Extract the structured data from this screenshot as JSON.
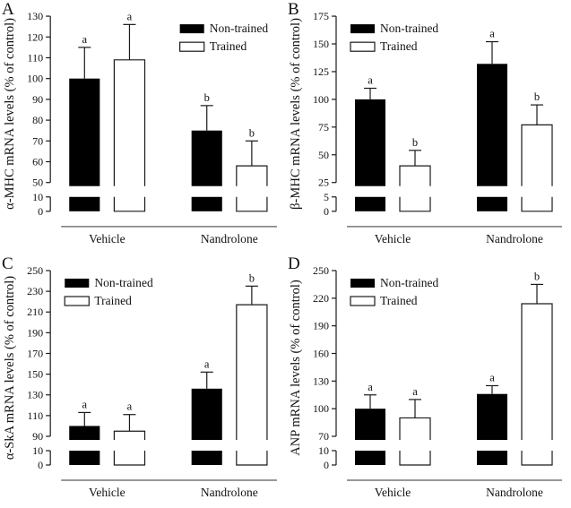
{
  "colors": {
    "bar_non_trained": "#000000",
    "bar_trained": "#ffffff",
    "axis": "#1a1a1a",
    "baseline": "#8a8a8a",
    "text": "#111111"
  },
  "chart_data": [
    {
      "type": "bar",
      "panel": "A",
      "ylabel": "α-MHC mRNA levels (% of control)",
      "categories": [
        "Vehicle",
        "Nandrolone"
      ],
      "legend": {
        "position": "top-right"
      },
      "series": [
        {
          "name": "Non-trained",
          "fill": "black",
          "values": [
            100,
            75
          ],
          "errors": [
            15,
            12
          ],
          "letters": [
            "a",
            "b"
          ]
        },
        {
          "name": "Trained",
          "fill": "white",
          "values": [
            109,
            58
          ],
          "errors": [
            17,
            12
          ],
          "letters": [
            "a",
            "b"
          ]
        }
      ],
      "y_axis": {
        "break": true,
        "lower": {
          "min": 0,
          "max": 10,
          "ticks": [
            0,
            10
          ]
        },
        "upper": {
          "min": 50,
          "max": 130,
          "ticks": [
            50,
            60,
            70,
            80,
            90,
            100,
            110,
            120,
            130
          ]
        }
      }
    },
    {
      "type": "bar",
      "panel": "B",
      "ylabel": "β-MHC mRNA levels (% of control)",
      "categories": [
        "Vehicle",
        "Nandrolone"
      ],
      "legend": {
        "position": "top-left"
      },
      "series": [
        {
          "name": "Non-trained",
          "fill": "black",
          "values": [
            100,
            132
          ],
          "errors": [
            10,
            20
          ],
          "letters": [
            "a",
            "a"
          ]
        },
        {
          "name": "Trained",
          "fill": "white",
          "values": [
            40,
            77
          ],
          "errors": [
            14,
            18
          ],
          "letters": [
            "b",
            "b"
          ]
        }
      ],
      "y_axis": {
        "break": true,
        "lower": {
          "min": 0,
          "max": 5,
          "ticks": [
            0,
            5
          ]
        },
        "upper": {
          "min": 25,
          "max": 175,
          "ticks": [
            25,
            50,
            75,
            100,
            125,
            150,
            175
          ]
        }
      }
    },
    {
      "type": "bar",
      "panel": "C",
      "ylabel": "α-SkA mRNA levels (% of control)",
      "categories": [
        "Vehicle",
        "Nandrolone"
      ],
      "legend": {
        "position": "top-left"
      },
      "series": [
        {
          "name": "Non-trained",
          "fill": "black",
          "values": [
            100,
            136
          ],
          "errors": [
            13,
            16
          ],
          "letters": [
            "a",
            "a"
          ]
        },
        {
          "name": "Trained",
          "fill": "white",
          "values": [
            95,
            217
          ],
          "errors": [
            16,
            18
          ],
          "letters": [
            "a",
            "b"
          ]
        }
      ],
      "y_axis": {
        "break": true,
        "lower": {
          "min": 0,
          "max": 10,
          "ticks": [
            0,
            10
          ]
        },
        "upper": {
          "min": 90,
          "max": 250,
          "ticks": [
            90,
            110,
            130,
            150,
            170,
            190,
            210,
            230,
            250
          ]
        }
      }
    },
    {
      "type": "bar",
      "panel": "D",
      "ylabel": "ANP mRNA levels (% of control)",
      "categories": [
        "Vehicle",
        "Nandrolone"
      ],
      "legend": {
        "position": "top-left"
      },
      "series": [
        {
          "name": "Non-trained",
          "fill": "black",
          "values": [
            100,
            116
          ],
          "errors": [
            15,
            9
          ],
          "letters": [
            "a",
            "a"
          ]
        },
        {
          "name": "Trained",
          "fill": "white",
          "values": [
            90,
            214
          ],
          "errors": [
            20,
            21
          ],
          "letters": [
            "a",
            "b"
          ]
        }
      ],
      "y_axis": {
        "break": true,
        "lower": {
          "min": 0,
          "max": 10,
          "ticks": [
            0,
            10
          ]
        },
        "upper": {
          "min": 70,
          "max": 250,
          "ticks": [
            70,
            100,
            130,
            160,
            190,
            220,
            250
          ]
        }
      }
    }
  ]
}
